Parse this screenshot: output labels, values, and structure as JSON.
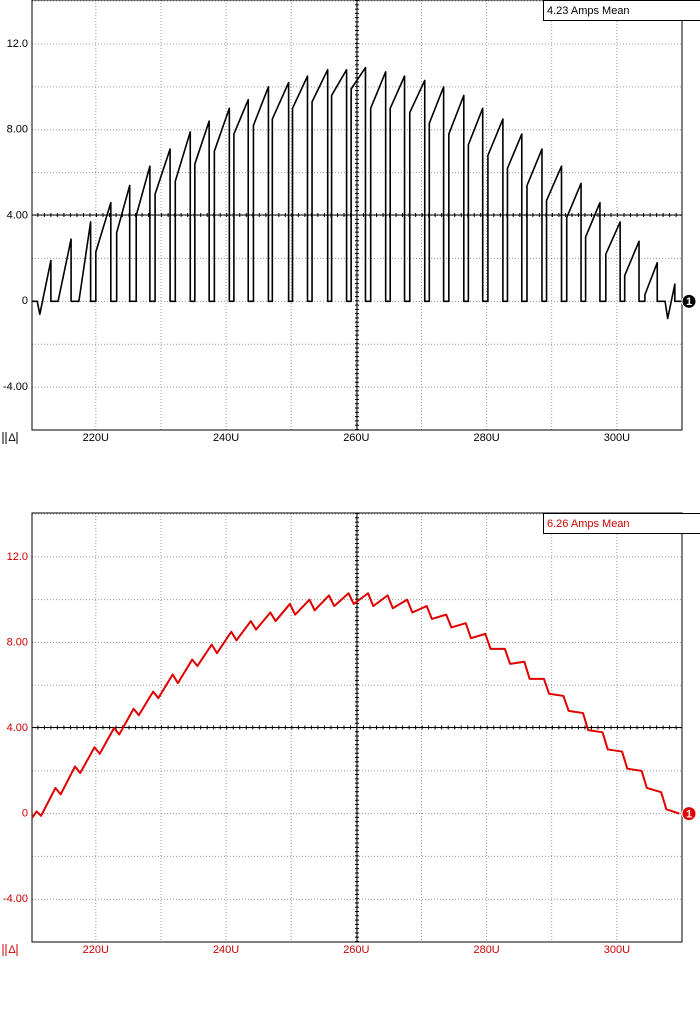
{
  "chart_data": [
    {
      "type": "line",
      "annotation": "4.23 Amps Mean",
      "channel_label": "1",
      "corner_label": "Δ",
      "label_color": "#000000",
      "grid": true,
      "xlim": [
        210.2,
        310.0
      ],
      "ylim": [
        -6.0,
        14.05
      ],
      "xticks": [
        {
          "value": 220,
          "label": "220U"
        },
        {
          "value": 240,
          "label": "240U"
        },
        {
          "value": 260,
          "label": "260U"
        },
        {
          "value": 280,
          "label": "280U"
        },
        {
          "value": 300,
          "label": "300U"
        }
      ],
      "yticks": [
        {
          "value": -4,
          "label": "-4.00"
        },
        0,
        {
          "value": 4,
          "label": "4.00"
        },
        {
          "value": 8,
          "label": "8.00"
        },
        {
          "value": 12,
          "label": "12.0"
        }
      ],
      "series": [
        {
          "color": "#000000",
          "x": [
            210.2,
            211.0,
            211.4,
            213.1,
            213.1,
            214.2,
            216.2,
            216.2,
            217.4,
            219.2,
            219.2,
            220.0,
            220.0,
            222.3,
            222.3,
            223.2,
            223.2,
            225.2,
            225.2,
            226.2,
            226.2,
            228.3,
            228.3,
            229.1,
            229.1,
            231.4,
            231.4,
            232.2,
            232.2,
            234.5,
            234.5,
            235.2,
            235.2,
            237.4,
            237.4,
            238.2,
            238.2,
            240.5,
            240.5,
            241.2,
            241.2,
            243.4,
            243.4,
            244.2,
            244.2,
            246.5,
            246.5,
            247.1,
            247.1,
            249.6,
            249.6,
            250.2,
            250.2,
            252.5,
            252.5,
            253.2,
            253.2,
            255.6,
            255.6,
            256.2,
            256.2,
            258.5,
            258.5,
            259.2,
            259.2,
            261.4,
            261.4,
            262.2,
            262.2,
            264.5,
            264.5,
            265.2,
            265.2,
            267.4,
            267.4,
            268.2,
            268.2,
            270.5,
            270.5,
            271.2,
            271.2,
            273.4,
            273.4,
            274.2,
            274.2,
            276.5,
            276.5,
            277.2,
            277.2,
            279.4,
            279.4,
            280.2,
            280.2,
            282.5,
            282.5,
            283.2,
            283.2,
            285.4,
            285.4,
            286.2,
            286.2,
            288.5,
            288.5,
            289.2,
            289.2,
            291.5,
            291.5,
            292.3,
            292.3,
            294.5,
            294.5,
            295.2,
            295.2,
            297.4,
            297.4,
            298.3,
            298.3,
            300.5,
            300.5,
            301.2,
            301.2,
            303.4,
            303.4,
            304.3,
            304.3,
            306.2,
            306.2,
            307.4,
            307.8,
            308.9,
            308.9,
            310.0
          ],
          "values": [
            0,
            0,
            -0.6,
            1.9,
            0,
            0,
            2.9,
            0,
            0,
            3.7,
            0,
            0,
            2.3,
            4.6,
            0,
            0,
            3.2,
            5.4,
            0,
            0,
            4.0,
            6.3,
            0,
            0,
            5.0,
            7.1,
            0,
            0,
            5.6,
            7.9,
            0,
            0,
            6.4,
            8.4,
            0,
            0,
            7.0,
            9.0,
            0,
            0,
            7.8,
            9.4,
            0,
            0,
            8.2,
            10.0,
            0,
            0,
            8.5,
            10.2,
            0,
            0,
            9.0,
            10.5,
            0,
            0,
            9.3,
            10.8,
            0,
            0,
            9.6,
            10.8,
            0,
            0,
            9.9,
            10.9,
            0,
            0,
            9.0,
            10.7,
            0,
            0,
            9.0,
            10.5,
            0,
            0,
            8.8,
            10.3,
            0,
            0,
            8.3,
            10.0,
            0,
            0,
            7.8,
            9.6,
            0,
            0,
            7.3,
            9.0,
            0,
            0,
            6.8,
            8.5,
            0,
            0,
            6.2,
            7.8,
            0,
            0,
            5.4,
            7.1,
            0,
            0,
            4.7,
            6.3,
            0,
            0,
            3.9,
            5.5,
            0,
            0,
            3.0,
            4.6,
            0,
            0,
            2.2,
            3.7,
            0,
            0,
            1.2,
            2.8,
            0,
            0,
            0.3,
            1.8,
            0,
            0,
            -0.8,
            0.8,
            0,
            0
          ]
        }
      ]
    },
    {
      "type": "line",
      "annotation": "6.26 Amps Mean",
      "channel_label": "1",
      "corner_label": "Δ",
      "label_color": "#cc0000",
      "grid": true,
      "xlim": [
        210.2,
        310.0
      ],
      "ylim": [
        -6.0,
        14.05
      ],
      "xticks": [
        {
          "value": 220,
          "label": "220U"
        },
        {
          "value": 240,
          "label": "240U"
        },
        {
          "value": 260,
          "label": "260U"
        },
        {
          "value": 280,
          "label": "280U"
        },
        {
          "value": 300,
          "label": "300U"
        }
      ],
      "yticks": [
        {
          "value": -4,
          "label": "-4.00"
        },
        0,
        {
          "value": 4,
          "label": "4.00"
        },
        {
          "value": 8,
          "label": "8.00"
        },
        {
          "value": 12,
          "label": "12.0"
        }
      ],
      "series": [
        {
          "color": "#e00000",
          "x": [
            210.2,
            210.9,
            211.6,
            213.8,
            214.6,
            216.8,
            217.6,
            219.8,
            220.6,
            222.8,
            223.6,
            225.8,
            226.6,
            228.8,
            229.6,
            231.8,
            232.6,
            234.8,
            235.6,
            237.8,
            238.6,
            240.8,
            241.6,
            243.8,
            244.6,
            246.8,
            247.6,
            249.8,
            250.6,
            252.8,
            253.6,
            255.8,
            256.6,
            258.8,
            259.6,
            261.8,
            262.6,
            264.8,
            265.6,
            267.8,
            268.6,
            270.8,
            271.6,
            273.8,
            274.6,
            276.8,
            277.6,
            279.8,
            280.6,
            282.8,
            283.6,
            285.8,
            286.6,
            288.8,
            289.6,
            291.8,
            292.6,
            294.8,
            295.6,
            297.8,
            298.6,
            300.8,
            301.6,
            303.8,
            304.6,
            306.8,
            307.6,
            309.6
          ],
          "values": [
            -0.2,
            0.1,
            -0.1,
            1.2,
            0.9,
            2.2,
            1.9,
            3.1,
            2.8,
            4.0,
            3.7,
            4.9,
            4.6,
            5.7,
            5.4,
            6.5,
            6.1,
            7.2,
            6.9,
            7.9,
            7.5,
            8.5,
            8.1,
            9.0,
            8.6,
            9.4,
            9.0,
            9.8,
            9.3,
            10.0,
            9.5,
            10.2,
            9.7,
            10.3,
            9.8,
            10.3,
            9.7,
            10.2,
            9.6,
            10.0,
            9.4,
            9.7,
            9.1,
            9.3,
            8.7,
            8.9,
            8.2,
            8.4,
            7.7,
            7.7,
            7.0,
            7.1,
            6.3,
            6.3,
            5.6,
            5.5,
            4.8,
            4.7,
            3.9,
            3.8,
            3.0,
            2.9,
            2.1,
            2.0,
            1.2,
            1.0,
            0.2,
            0.0
          ]
        }
      ]
    }
  ]
}
